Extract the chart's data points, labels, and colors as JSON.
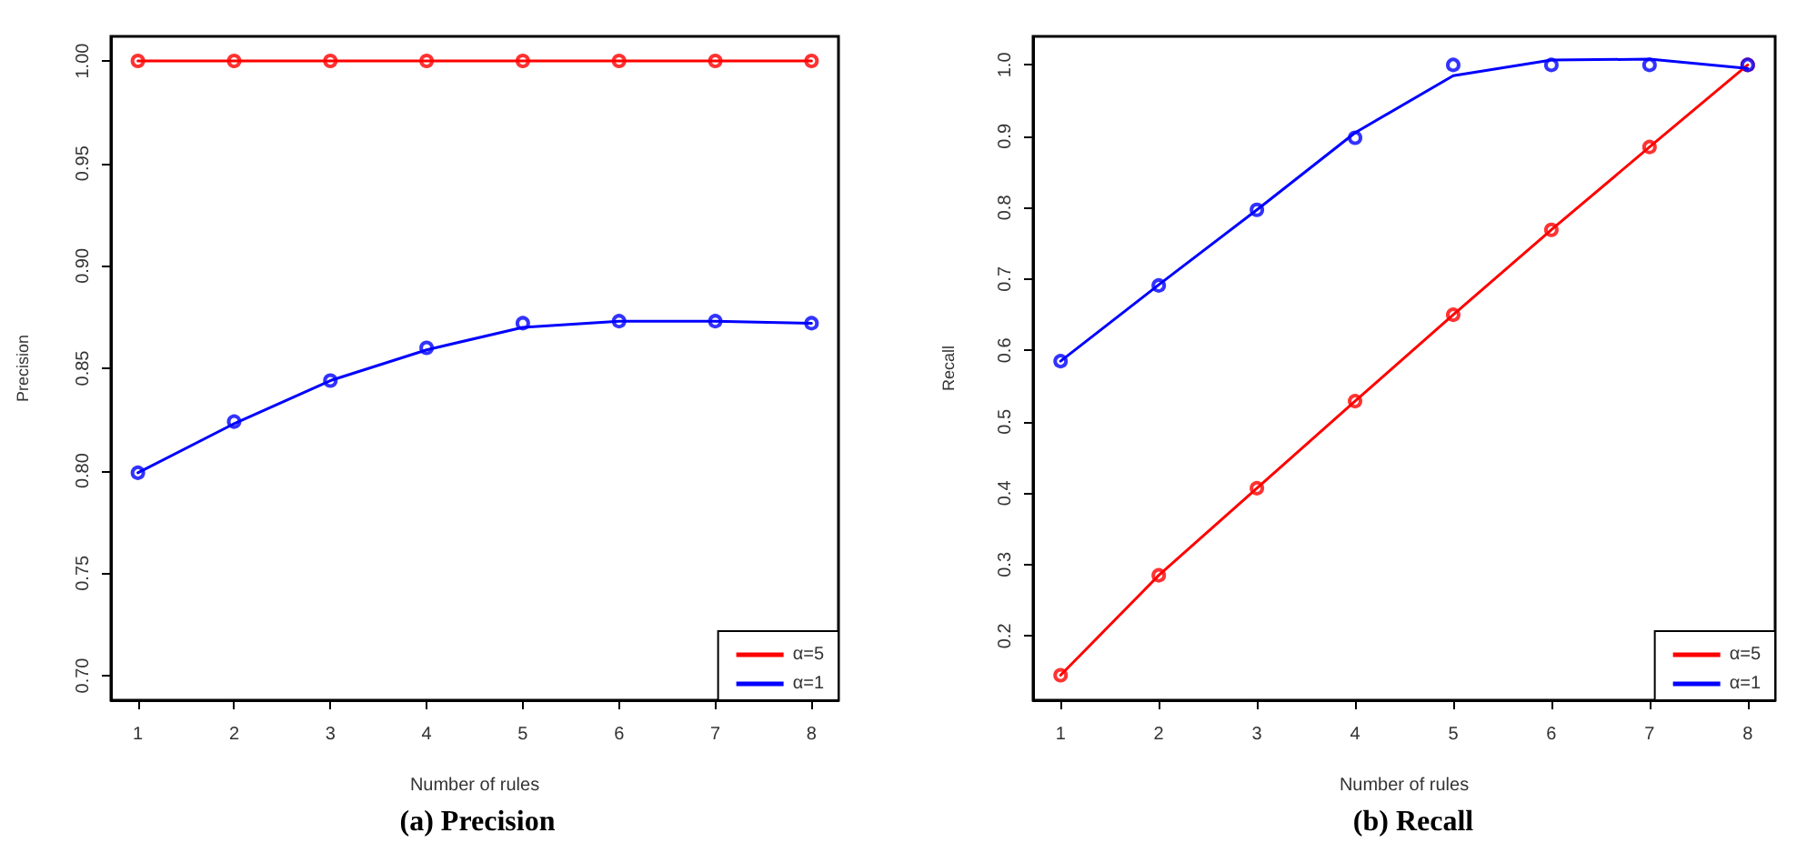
{
  "chart_data": [
    {
      "type": "line",
      "title": "(a) Precision",
      "xlabel": "Number of rules",
      "ylabel": "Precision",
      "x": [
        1,
        2,
        3,
        4,
        5,
        6,
        7,
        8
      ],
      "xlim": [
        0.72,
        8.28
      ],
      "xticks": [
        1,
        2,
        3,
        4,
        5,
        6,
        7,
        8
      ],
      "ylim": [
        0.688,
        1.012
      ],
      "yticks": [
        {
          "value": 0.7,
          "label": "0.70"
        },
        {
          "value": 0.75,
          "label": "0.75"
        },
        {
          "value": 0.8,
          "label": "0.80"
        },
        {
          "value": 0.85,
          "label": "0.85"
        },
        {
          "value": 0.9,
          "label": "0.90"
        },
        {
          "value": 0.95,
          "label": "0.95"
        },
        {
          "value": 1,
          "label": "1.00"
        }
      ],
      "grid": false,
      "legend": "bottom right",
      "series": [
        {
          "name": "α=5",
          "marker": "none",
          "color": "#ff0000",
          "values": [
            1,
            1,
            1,
            1,
            1,
            1,
            1,
            1
          ]
        },
        {
          "name": "α=1",
          "marker": "none",
          "color": "#0000ff",
          "values": [
            0.799,
            0.823,
            0.844,
            0.859,
            0.87,
            0.873,
            0.873,
            0.872
          ]
        },
        {
          "type": "scatter",
          "marker": "circle",
          "color": "#ff0000",
          "values": [
            1,
            1,
            1,
            1,
            1,
            1,
            1,
            1
          ]
        },
        {
          "type": "scatter",
          "marker": "circle",
          "color": "#0000ff",
          "values": [
            0.799,
            0.824,
            0.844,
            0.86,
            0.872,
            0.873,
            0.873,
            0.872
          ]
        }
      ]
    },
    {
      "type": "line",
      "title": "(b) Recall",
      "xlabel": "Number of rules",
      "ylabel": "Recall",
      "x": [
        1,
        2,
        3,
        4,
        5,
        6,
        7,
        8
      ],
      "xlim": [
        0.72,
        8.28
      ],
      "xticks": [
        1,
        2,
        3,
        4,
        5,
        6,
        7,
        8
      ],
      "ylim": [
        0.11,
        1.04
      ],
      "yticks": [
        {
          "value": 0.2,
          "label": "0.2"
        },
        {
          "value": 0.3,
          "label": "0.3"
        },
        {
          "value": 0.4,
          "label": "0.4"
        },
        {
          "value": 0.5,
          "label": "0.5"
        },
        {
          "value": 0.6,
          "label": "0.6"
        },
        {
          "value": 0.7,
          "label": "0.7"
        },
        {
          "value": 0.8,
          "label": "0.8"
        },
        {
          "value": 0.9,
          "label": "0.9"
        },
        {
          "value": 1,
          "label": "1.0"
        }
      ],
      "grid": false,
      "legend": "bottom right",
      "series": [
        {
          "name": "α=5",
          "marker": "none",
          "color": "#ff0000",
          "values": [
            0.145,
            0.285,
            0.407,
            0.529,
            0.65,
            0.769,
            0.885,
            1.0
          ]
        },
        {
          "name": "α=1",
          "marker": "none",
          "color": "#0000ff",
          "values": [
            0.585,
            0.692,
            0.797,
            0.905,
            0.985,
            1.007,
            1.008,
            0.995
          ]
        },
        {
          "type": "scatter",
          "marker": "circle",
          "color": "#ff0000",
          "values": [
            0.145,
            0.285,
            0.407,
            0.529,
            0.65,
            0.769,
            0.885,
            1.0
          ]
        },
        {
          "type": "scatter",
          "marker": "circle",
          "color": "#0000ff",
          "values": [
            0.585,
            0.691,
            0.797,
            0.898,
            1.0,
            1.0,
            1.0,
            1.0
          ]
        }
      ]
    }
  ]
}
